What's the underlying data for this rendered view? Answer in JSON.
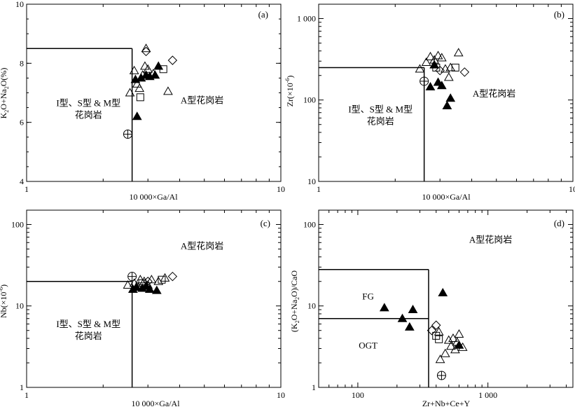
{
  "chart_data": [
    {
      "id": "a",
      "type": "scatter",
      "panel_label": "(a)",
      "xlabel": "10 000×Ga/Al",
      "ylabel": "K2O+Na2O(%)",
      "x_scale": "log",
      "xlim": [
        1,
        10
      ],
      "ylim": [
        4,
        10
      ],
      "x_ticks": [
        {
          "value": 1,
          "label": "1"
        },
        {
          "value": 10,
          "label": "10"
        }
      ],
      "y_ticks": [
        {
          "value": 4,
          "label": "4"
        },
        {
          "value": 6,
          "label": "6"
        },
        {
          "value": 8,
          "label": "8"
        },
        {
          "value": 10,
          "label": "10"
        }
      ],
      "boundary_lines": [
        [
          [
            1,
            8.5
          ],
          [
            2.6,
            8.5
          ]
        ],
        [
          [
            2.6,
            8.5
          ],
          [
            2.6,
            4
          ]
        ]
      ],
      "regions": [
        {
          "text_lines": [
            "I型、S型 & M型",
            "花岗岩"
          ],
          "x": 1.75,
          "y": 6.55
        },
        {
          "text_lines": [
            "A型花岗岩"
          ],
          "x": 4.9,
          "y": 6.65
        }
      ],
      "points": [
        {
          "marker": "triangle-open",
          "x": 2.65,
          "y": 7.75
        },
        {
          "marker": "triangle-open",
          "x": 2.72,
          "y": 7.3
        },
        {
          "marker": "triangle-open",
          "x": 2.78,
          "y": 7.15
        },
        {
          "marker": "triangle-open",
          "x": 2.55,
          "y": 7.0
        },
        {
          "marker": "triangle-open",
          "x": 2.86,
          "y": 7.6
        },
        {
          "marker": "triangle-open",
          "x": 2.92,
          "y": 7.9
        },
        {
          "marker": "triangle-open",
          "x": 3.0,
          "y": 7.8
        },
        {
          "marker": "triangle-open",
          "x": 3.15,
          "y": 7.65
        },
        {
          "marker": "triangle-open",
          "x": 3.6,
          "y": 7.05
        },
        {
          "marker": "triangle-open",
          "x": 2.95,
          "y": 8.5
        },
        {
          "marker": "triangle-filled",
          "x": 2.68,
          "y": 7.45
        },
        {
          "marker": "triangle-filled",
          "x": 2.82,
          "y": 7.5
        },
        {
          "marker": "triangle-filled",
          "x": 2.95,
          "y": 7.6
        },
        {
          "marker": "triangle-filled",
          "x": 3.05,
          "y": 7.55
        },
        {
          "marker": "triangle-filled",
          "x": 3.2,
          "y": 7.6
        },
        {
          "marker": "triangle-filled",
          "x": 3.3,
          "y": 7.9
        },
        {
          "marker": "triangle-filled",
          "x": 2.72,
          "y": 6.2
        },
        {
          "marker": "diamond-open",
          "x": 2.95,
          "y": 8.4
        },
        {
          "marker": "diamond-open",
          "x": 3.75,
          "y": 8.1
        },
        {
          "marker": "square-open",
          "x": 2.8,
          "y": 6.85
        },
        {
          "marker": "square-open",
          "x": 3.45,
          "y": 7.8
        },
        {
          "marker": "circle-plus",
          "x": 2.5,
          "y": 5.6
        }
      ]
    },
    {
      "id": "b",
      "type": "scatter",
      "panel_label": "(b)",
      "xlabel": "10 000×Ga/Al",
      "ylabel": "Zr(×10⁻⁶)",
      "x_scale": "log",
      "y_scale": "log",
      "xlim": [
        1,
        10
      ],
      "ylim": [
        10,
        1500
      ],
      "x_ticks": [
        {
          "value": 1,
          "label": "1"
        },
        {
          "value": 10,
          "label": "10"
        }
      ],
      "y_ticks": [
        {
          "value": 10,
          "label": "10"
        },
        {
          "value": 100,
          "label": "100"
        },
        {
          "value": 1000,
          "label": "1 000"
        }
      ],
      "boundary_lines": [
        [
          [
            1,
            250
          ],
          [
            2.6,
            250
          ]
        ],
        [
          [
            2.6,
            250
          ],
          [
            2.6,
            10
          ]
        ]
      ],
      "regions": [
        {
          "text_lines": [
            "I型、S型 & M型",
            "花岗岩"
          ],
          "x": 1.75,
          "y": 70
        },
        {
          "text_lines": [
            "A型花岗岩"
          ],
          "x": 4.9,
          "y": 110
        }
      ],
      "points": [
        {
          "marker": "triangle-open",
          "x": 2.5,
          "y": 240
        },
        {
          "marker": "triangle-open",
          "x": 2.65,
          "y": 290
        },
        {
          "marker": "triangle-open",
          "x": 2.75,
          "y": 340
        },
        {
          "marker": "triangle-open",
          "x": 2.85,
          "y": 310
        },
        {
          "marker": "triangle-open",
          "x": 2.95,
          "y": 350
        },
        {
          "marker": "triangle-open",
          "x": 3.05,
          "y": 330
        },
        {
          "marker": "triangle-open",
          "x": 3.15,
          "y": 240
        },
        {
          "marker": "triangle-open",
          "x": 3.3,
          "y": 250
        },
        {
          "marker": "triangle-open",
          "x": 3.55,
          "y": 380
        },
        {
          "marker": "triangle-open",
          "x": 3.25,
          "y": 190
        },
        {
          "marker": "triangle-filled",
          "x": 2.75,
          "y": 145
        },
        {
          "marker": "triangle-filled",
          "x": 2.95,
          "y": 165
        },
        {
          "marker": "triangle-filled",
          "x": 3.05,
          "y": 150
        },
        {
          "marker": "triangle-filled",
          "x": 3.3,
          "y": 105
        },
        {
          "marker": "triangle-filled",
          "x": 3.2,
          "y": 85
        },
        {
          "marker": "triangle-filled",
          "x": 2.85,
          "y": 270
        },
        {
          "marker": "diamond-open",
          "x": 3.0,
          "y": 230
        },
        {
          "marker": "diamond-open",
          "x": 3.75,
          "y": 220
        },
        {
          "marker": "square-open",
          "x": 2.9,
          "y": 250
        },
        {
          "marker": "square-open",
          "x": 3.45,
          "y": 250
        },
        {
          "marker": "circle-plus",
          "x": 2.6,
          "y": 170
        }
      ]
    },
    {
      "id": "c",
      "type": "scatter",
      "panel_label": "(c)",
      "xlabel": "10 000×Ga/Al",
      "ylabel": "Nb(×10⁻⁶)",
      "x_scale": "log",
      "y_scale": "log",
      "xlim": [
        1,
        10
      ],
      "ylim": [
        1,
        150
      ],
      "x_ticks": [
        {
          "value": 1,
          "label": "1"
        },
        {
          "value": 10,
          "label": "10"
        }
      ],
      "y_ticks": [
        {
          "value": 1,
          "label": "1"
        },
        {
          "value": 10,
          "label": "10"
        },
        {
          "value": 100,
          "label": "100"
        }
      ],
      "boundary_lines": [
        [
          [
            1,
            20
          ],
          [
            2.6,
            20
          ]
        ],
        [
          [
            2.6,
            20
          ],
          [
            2.6,
            1
          ]
        ]
      ],
      "regions": [
        {
          "text_lines": [
            "I型、S型 & M型",
            "花岗岩"
          ],
          "x": 1.75,
          "y": 5.5
        },
        {
          "text_lines": [
            "A型花岗岩"
          ],
          "x": 4.9,
          "y": 50
        }
      ],
      "points": [
        {
          "marker": "triangle-open",
          "x": 2.5,
          "y": 18
        },
        {
          "marker": "triangle-open",
          "x": 2.65,
          "y": 19
        },
        {
          "marker": "triangle-open",
          "x": 2.8,
          "y": 21
        },
        {
          "marker": "triangle-open",
          "x": 2.9,
          "y": 20
        },
        {
          "marker": "triangle-open",
          "x": 3.0,
          "y": 18
        },
        {
          "marker": "triangle-open",
          "x": 3.1,
          "y": 21
        },
        {
          "marker": "triangle-open",
          "x": 3.3,
          "y": 20
        },
        {
          "marker": "triangle-open",
          "x": 3.5,
          "y": 22
        },
        {
          "marker": "triangle-open",
          "x": 2.75,
          "y": 17
        },
        {
          "marker": "triangle-filled",
          "x": 2.62,
          "y": 16
        },
        {
          "marker": "triangle-filled",
          "x": 2.7,
          "y": 17
        },
        {
          "marker": "triangle-filled",
          "x": 2.85,
          "y": 16.5
        },
        {
          "marker": "triangle-filled",
          "x": 2.95,
          "y": 17.5
        },
        {
          "marker": "triangle-filled",
          "x": 3.05,
          "y": 16
        },
        {
          "marker": "triangle-filled",
          "x": 3.25,
          "y": 15.5
        },
        {
          "marker": "diamond-open",
          "x": 3.0,
          "y": 20
        },
        {
          "marker": "diamond-open",
          "x": 3.75,
          "y": 23
        },
        {
          "marker": "square-open",
          "x": 2.85,
          "y": 19
        },
        {
          "marker": "square-open",
          "x": 3.4,
          "y": 21
        },
        {
          "marker": "circle-plus",
          "x": 2.6,
          "y": 23
        }
      ]
    },
    {
      "id": "d",
      "type": "scatter",
      "panel_label": "(d)",
      "xlabel": "Zr+Nb+Ce+Y",
      "ylabel": "(K2O+Na2O)/CaO",
      "x_scale": "log",
      "y_scale": "log",
      "xlim": [
        50,
        4500
      ],
      "ylim": [
        1,
        150
      ],
      "x_ticks": [
        {
          "value": 100,
          "label": "100"
        },
        {
          "value": 1000,
          "label": "1 000"
        }
      ],
      "y_ticks": [
        {
          "value": 1,
          "label": "1"
        },
        {
          "value": 10,
          "label": "10"
        },
        {
          "value": 100,
          "label": "100"
        }
      ],
      "boundary_lines": [
        [
          [
            50,
            28
          ],
          [
            350,
            28
          ]
        ],
        [
          [
            50,
            7
          ],
          [
            350,
            7
          ]
        ],
        [
          [
            350,
            28
          ],
          [
            350,
            1
          ]
        ]
      ],
      "regions": [
        {
          "text_lines": [
            "FG"
          ],
          "x": 120,
          "y": 12
        },
        {
          "text_lines": [
            "OGT"
          ],
          "x": 120,
          "y": 3
        },
        {
          "text_lines": [
            "A型花岗岩"
          ],
          "x": 1050,
          "y": 60
        }
      ],
      "points": [
        {
          "marker": "triangle-filled",
          "x": 160,
          "y": 9.5
        },
        {
          "marker": "triangle-filled",
          "x": 220,
          "y": 7.0
        },
        {
          "marker": "triangle-filled",
          "x": 250,
          "y": 5.5
        },
        {
          "marker": "triangle-filled",
          "x": 265,
          "y": 9.0
        },
        {
          "marker": "triangle-filled",
          "x": 450,
          "y": 14.5
        },
        {
          "marker": "triangle-filled",
          "x": 600,
          "y": 3.3
        },
        {
          "marker": "triangle-open",
          "x": 430,
          "y": 2.2
        },
        {
          "marker": "triangle-open",
          "x": 470,
          "y": 2.6
        },
        {
          "marker": "triangle-open",
          "x": 500,
          "y": 3.8
        },
        {
          "marker": "triangle-open",
          "x": 520,
          "y": 3.2
        },
        {
          "marker": "triangle-open",
          "x": 540,
          "y": 4.0
        },
        {
          "marker": "triangle-open",
          "x": 560,
          "y": 2.9
        },
        {
          "marker": "triangle-open",
          "x": 580,
          "y": 3.6
        },
        {
          "marker": "triangle-open",
          "x": 600,
          "y": 4.5
        },
        {
          "marker": "triangle-open",
          "x": 640,
          "y": 3.1
        },
        {
          "marker": "triangle-open",
          "x": 420,
          "y": 4.8
        },
        {
          "marker": "diamond-open",
          "x": 370,
          "y": 5.0
        },
        {
          "marker": "diamond-open",
          "x": 400,
          "y": 5.8
        },
        {
          "marker": "square-open",
          "x": 400,
          "y": 4.3
        },
        {
          "marker": "square-open",
          "x": 420,
          "y": 3.9
        },
        {
          "marker": "circle-plus",
          "x": 440,
          "y": 1.4
        }
      ]
    }
  ]
}
